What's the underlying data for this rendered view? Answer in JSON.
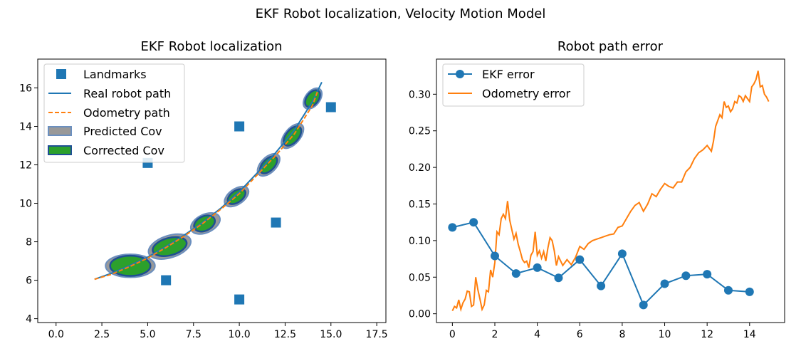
{
  "figure_title": "EKF Robot localization, Velocity Motion Model",
  "colors": {
    "blue": "#1f77b4",
    "orange": "#ff7f0e",
    "green": "#2ca02c",
    "gray": "#999999"
  },
  "chart_data": [
    {
      "type": "scatter",
      "title": "EKF Robot localization",
      "xlabel": "",
      "ylabel": "",
      "xlim": [
        -1,
        18
      ],
      "ylim": [
        3.8,
        17.5
      ],
      "xticks": [
        0.0,
        2.5,
        5.0,
        7.5,
        10.0,
        12.5,
        15.0,
        17.5
      ],
      "xtick_labels": [
        "0.0",
        "2.5",
        "5.0",
        "7.5",
        "10.0",
        "12.5",
        "15.0",
        "17.5"
      ],
      "yticks": [
        4,
        6,
        8,
        10,
        12,
        14,
        16
      ],
      "ytick_labels": [
        "4",
        "6",
        "8",
        "10",
        "12",
        "14",
        "16"
      ],
      "grid": false,
      "legend_position": "top-left",
      "legend": [
        "Landmarks",
        "Real robot path",
        "Odometry path",
        "Predicted Cov",
        "Corrected Cov"
      ],
      "landmarks": {
        "x": [
          5,
          6,
          10,
          10,
          12,
          15
        ],
        "y": [
          12.1,
          6,
          14,
          5,
          9,
          15
        ]
      },
      "real_path": {
        "x": [
          2.1,
          3,
          4,
          5,
          6,
          7,
          8,
          9,
          10,
          11,
          12,
          13,
          14,
          14.5
        ],
        "y": [
          6.05,
          6.35,
          6.75,
          7.2,
          7.75,
          8.35,
          9.0,
          9.75,
          10.6,
          11.6,
          12.65,
          13.8,
          15.3,
          16.3
        ]
      },
      "odometry_path": {
        "x": [
          2.1,
          3,
          4,
          5,
          6,
          7,
          8,
          9,
          10,
          11,
          12,
          13,
          14,
          14.3
        ],
        "y": [
          6.05,
          6.3,
          6.7,
          7.15,
          7.7,
          8.3,
          8.95,
          9.7,
          10.5,
          11.5,
          12.5,
          13.6,
          15.1,
          15.9
        ]
      },
      "predicted_cov": [
        {
          "x": 4.05,
          "y": 6.75,
          "w": 2.7,
          "h": 1.2,
          "angle": 0
        },
        {
          "x": 6.2,
          "y": 7.75,
          "w": 2.4,
          "h": 1.15,
          "angle": 18
        },
        {
          "x": 8.15,
          "y": 8.95,
          "w": 1.7,
          "h": 0.95,
          "angle": 25
        },
        {
          "x": 9.85,
          "y": 10.35,
          "w": 1.5,
          "h": 0.8,
          "angle": 35
        },
        {
          "x": 11.6,
          "y": 12.0,
          "w": 1.5,
          "h": 0.8,
          "angle": 45
        },
        {
          "x": 12.9,
          "y": 13.5,
          "w": 1.6,
          "h": 0.8,
          "angle": 50
        },
        {
          "x": 14.0,
          "y": 15.45,
          "w": 1.3,
          "h": 0.75,
          "angle": 52
        }
      ],
      "corrected_cov": [
        {
          "x": 4.05,
          "y": 6.75,
          "w": 2.2,
          "h": 1.05,
          "angle": 0
        },
        {
          "x": 6.2,
          "y": 7.75,
          "w": 1.9,
          "h": 0.9,
          "angle": 15
        },
        {
          "x": 8.1,
          "y": 8.95,
          "w": 1.2,
          "h": 0.75,
          "angle": 25
        },
        {
          "x": 9.85,
          "y": 10.35,
          "w": 1.1,
          "h": 0.6,
          "angle": 35
        },
        {
          "x": 11.6,
          "y": 12.0,
          "w": 1.15,
          "h": 0.6,
          "angle": 45
        },
        {
          "x": 12.9,
          "y": 13.5,
          "w": 1.25,
          "h": 0.65,
          "angle": 50
        },
        {
          "x": 14.0,
          "y": 15.45,
          "w": 1.05,
          "h": 0.6,
          "angle": 52
        }
      ]
    },
    {
      "type": "line",
      "title": "Robot path error",
      "xlabel": "",
      "ylabel": "",
      "xlim": [
        -0.75,
        15.65
      ],
      "ylim": [
        -0.012,
        0.348
      ],
      "xticks": [
        0,
        2,
        4,
        6,
        8,
        10,
        12,
        14
      ],
      "xtick_labels": [
        "0",
        "2",
        "4",
        "6",
        "8",
        "10",
        "12",
        "14"
      ],
      "yticks": [
        0.0,
        0.05,
        0.1,
        0.15,
        0.2,
        0.25,
        0.3
      ],
      "ytick_labels": [
        "0.00",
        "0.05",
        "0.10",
        "0.15",
        "0.20",
        "0.25",
        "0.30"
      ],
      "grid": false,
      "legend_position": "top-left",
      "series": [
        {
          "name": "EKF error",
          "x": [
            0,
            1,
            2,
            3,
            4,
            5,
            6,
            7,
            8,
            9,
            10,
            11,
            12,
            13,
            14
          ],
          "values": [
            0.118,
            0.125,
            0.079,
            0.055,
            0.063,
            0.049,
            0.074,
            0.038,
            0.082,
            0.012,
            0.041,
            0.052,
            0.054,
            0.032,
            0.03
          ]
        },
        {
          "name": "Odometry error",
          "x": [
            0,
            0.1,
            0.2,
            0.3,
            0.4,
            0.5,
            0.6,
            0.7,
            0.8,
            0.9,
            1,
            1.1,
            1.2,
            1.3,
            1.4,
            1.5,
            1.6,
            1.7,
            1.8,
            1.9,
            2,
            2.1,
            2.2,
            2.3,
            2.4,
            2.5,
            2.6,
            2.7,
            2.8,
            2.9,
            3,
            3.1,
            3.2,
            3.3,
            3.4,
            3.5,
            3.6,
            3.7,
            3.8,
            3.9,
            4,
            4.1,
            4.2,
            4.3,
            4.4,
            4.5,
            4.6,
            4.7,
            4.8,
            4.9,
            5,
            5.2,
            5.4,
            5.6,
            5.8,
            6,
            6.2,
            6.4,
            6.6,
            6.8,
            7,
            7.2,
            7.4,
            7.6,
            7.8,
            8,
            8.2,
            8.4,
            8.6,
            8.8,
            9,
            9.2,
            9.4,
            9.6,
            9.8,
            10,
            10.2,
            10.4,
            10.6,
            10.8,
            11,
            11.2,
            11.4,
            11.6,
            11.8,
            12,
            12.1,
            12.2,
            12.3,
            12.4,
            12.5,
            12.6,
            12.7,
            12.8,
            12.9,
            13,
            13.1,
            13.2,
            13.3,
            13.4,
            13.5,
            13.6,
            13.7,
            13.8,
            13.9,
            14,
            14.1,
            14.2,
            14.3,
            14.4,
            14.5,
            14.6,
            14.7,
            14.8,
            14.9
          ],
          "values": [
            0.004,
            0.01,
            0.008,
            0.019,
            0.006,
            0.015,
            0.02,
            0.031,
            0.03,
            0.01,
            0.012,
            0.05,
            0.033,
            0.02,
            0.006,
            0.012,
            0.032,
            0.03,
            0.06,
            0.05,
            0.07,
            0.112,
            0.108,
            0.13,
            0.136,
            0.13,
            0.154,
            0.128,
            0.115,
            0.102,
            0.11,
            0.095,
            0.085,
            0.074,
            0.07,
            0.072,
            0.063,
            0.08,
            0.085,
            0.112,
            0.08,
            0.086,
            0.076,
            0.085,
            0.072,
            0.09,
            0.104,
            0.1,
            0.086,
            0.066,
            0.078,
            0.066,
            0.074,
            0.067,
            0.077,
            0.092,
            0.088,
            0.096,
            0.1,
            0.102,
            0.104,
            0.106,
            0.108,
            0.109,
            0.118,
            0.12,
            0.13,
            0.14,
            0.148,
            0.152,
            0.14,
            0.15,
            0.164,
            0.16,
            0.17,
            0.178,
            0.174,
            0.172,
            0.18,
            0.18,
            0.194,
            0.2,
            0.212,
            0.22,
            0.224,
            0.23,
            0.226,
            0.222,
            0.236,
            0.256,
            0.264,
            0.272,
            0.268,
            0.29,
            0.282,
            0.284,
            0.276,
            0.28,
            0.29,
            0.288,
            0.298,
            0.296,
            0.29,
            0.298,
            0.294,
            0.29,
            0.31,
            0.314,
            0.32,
            0.332,
            0.31,
            0.312,
            0.3,
            0.296,
            0.29
          ]
        }
      ]
    }
  ]
}
